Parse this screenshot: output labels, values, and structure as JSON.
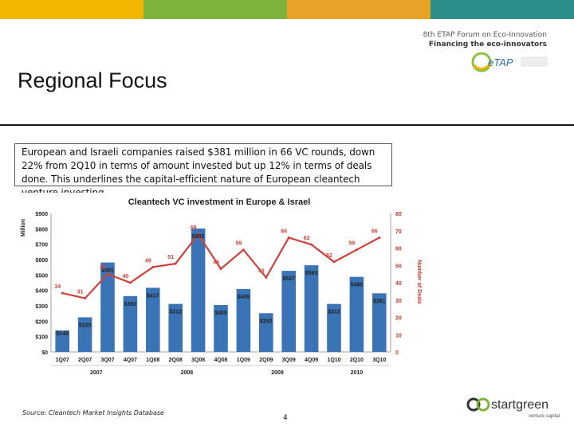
{
  "colors": {
    "band": [
      "#f2b600",
      "#7fb23a",
      "#e7a227",
      "#2e8e8a",
      "#94bf46"
    ],
    "bar": "#3a73b6",
    "line": "#d0403a",
    "axis_left": "#222222",
    "axis_right": "#c0392b"
  },
  "header": {
    "forum_line1": "8th ETAP Forum on Eco-Innovation",
    "forum_line2": "Financing the eco-innovators",
    "etap_logo_text": "eTAP"
  },
  "page": {
    "title": "Regional Focus",
    "summary": "European and Israeli companies raised $381 million in 66 VC rounds, down 22% from 2Q10 in terms of amount invested but up 12% in terms of deals done. This underlines the capital-efficient nature of European cleantech venture investing",
    "source": "Source: Cleantech Market Insights Database",
    "page_number": "4",
    "footer_logo_text": "startgreen",
    "footer_logo_sub": "venture capital"
  },
  "chart_data": {
    "type": "bar",
    "title": "Cleantech VC investment in Europe & Israel",
    "ylabel": "Million",
    "y2label": "Number of Deals",
    "categories": [
      "1Q07",
      "2Q07",
      "3Q07",
      "4Q07",
      "1Q08",
      "2Q08",
      "3Q08",
      "4Q08",
      "1Q09",
      "2Q09",
      "3Q09",
      "4Q09",
      "1Q10",
      "2Q10",
      "3Q10"
    ],
    "year_groups": [
      {
        "label": "2007",
        "from": 0,
        "to": 3
      },
      {
        "label": "2008",
        "from": 4,
        "to": 7
      },
      {
        "label": "2009",
        "from": 8,
        "to": 11
      },
      {
        "label": "2010",
        "from": 12,
        "to": 14
      }
    ],
    "series": [
      {
        "type": "bar",
        "axis": "left",
        "values": [
          140,
          225,
          581,
          363,
          417,
          312,
          802,
          305,
          409,
          252,
          527,
          563,
          312,
          488,
          381
        ],
        "labels": [
          "$140",
          "$225",
          "$581",
          "$363",
          "$417",
          "$312",
          "$802",
          "$305",
          "$409",
          "$252",
          "$527",
          "$563",
          "$312",
          "$488",
          "$381"
        ]
      },
      {
        "type": "line",
        "axis": "right",
        "values": [
          34,
          31,
          45,
          40,
          49,
          51,
          68,
          48,
          59,
          43,
          66,
          62,
          52,
          59,
          66
        ],
        "labels": [
          "34",
          "31",
          "45",
          "40",
          "49",
          "51",
          "68",
          "48",
          "59",
          "43",
          "66",
          "62",
          "52",
          "59",
          "66"
        ]
      }
    ],
    "ylim": [
      0,
      900
    ],
    "y2lim": [
      0,
      80
    ],
    "yticks": [
      "$0",
      "$100",
      "$200",
      "$300",
      "$400",
      "$500",
      "$600",
      "$700",
      "$800",
      "$900"
    ],
    "y2ticks": [
      "0",
      "10",
      "20",
      "30",
      "40",
      "50",
      "60",
      "70",
      "80"
    ],
    "grid": false,
    "legend": "none"
  }
}
